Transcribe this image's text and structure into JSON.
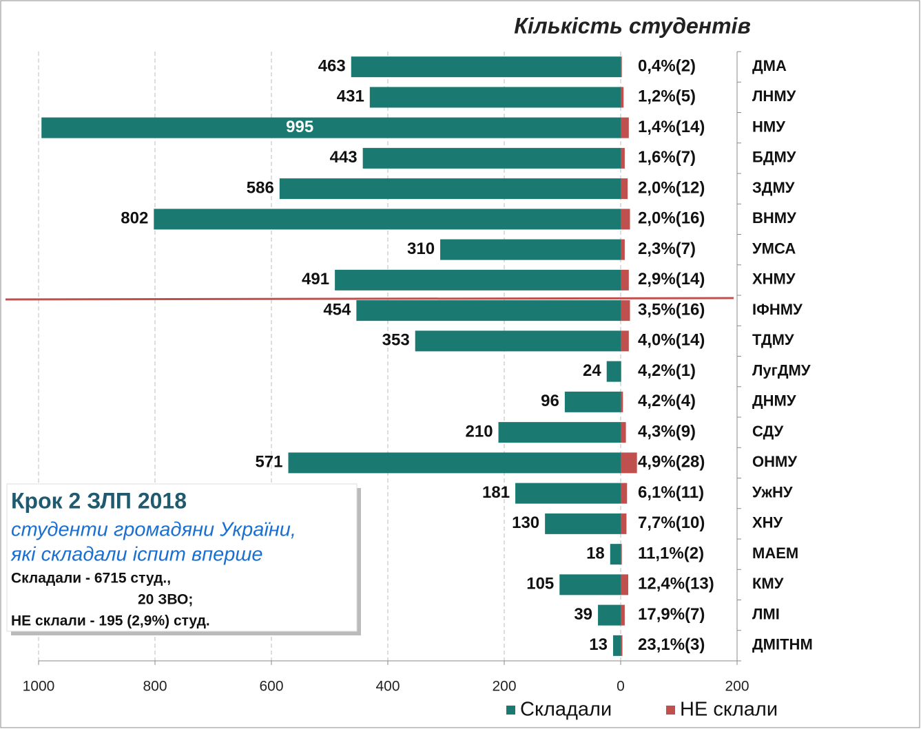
{
  "chart_data": {
    "type": "diverging_bar",
    "title": "Кількість студентів",
    "categories": [
      "ДМА",
      "ЛНМУ",
      "НМУ",
      "БДМУ",
      "ЗДМУ",
      "ВНМУ",
      "УМСА",
      "ХНМУ",
      "ІФНМУ",
      "ТДМУ",
      "ЛугДМУ",
      "ДНМУ",
      "СДУ",
      "ОНМУ",
      "УжНУ",
      "ХНУ",
      "МАЕМ",
      "КМУ",
      "ЛМІ",
      "ДМІТНМ"
    ],
    "series": [
      {
        "name": "Складали",
        "color": "#1a7a72",
        "values": [
          -463,
          -431,
          -995,
          -443,
          -586,
          -802,
          -310,
          -491,
          -454,
          -353,
          -24,
          -96,
          -210,
          -571,
          -181,
          -130,
          -18,
          -105,
          -39,
          -13
        ],
        "value_labels": [
          "463",
          "431",
          "995",
          "443",
          "586",
          "802",
          "310",
          "491",
          "454",
          "353",
          "24",
          "96",
          "210",
          "571",
          "181",
          "130",
          "18",
          "105",
          "39",
          "13"
        ]
      },
      {
        "name": "НЕ склали",
        "color": "#c0504d",
        "values": [
          2,
          5,
          14,
          7,
          12,
          16,
          7,
          14,
          16,
          14,
          1,
          4,
          9,
          28,
          11,
          10,
          2,
          13,
          7,
          3
        ],
        "value_labels": [
          "0,4%(2)",
          "1,2%(5)",
          "1,4%(14)",
          "1,6%(7)",
          "2,0%(12)",
          "2,0%(16)",
          "2,3%(7)",
          "2,9%(14)",
          "3,5%(16)",
          "4,0%(14)",
          "4,2%(1)",
          "4,2%(4)",
          "4,3%(9)",
          "4,9%(28)",
          "6,1%(11)",
          "7,7%(10)",
          "11,1%(2)",
          "12,4%(13)",
          "17,9%(7)",
          "23,1%(3)"
        ]
      }
    ],
    "xlim": [
      -1000,
      200
    ],
    "xticks": [
      {
        "value": -1000,
        "label": "1000"
      },
      {
        "value": -800,
        "label": "800"
      },
      {
        "value": -600,
        "label": "600"
      },
      {
        "value": -400,
        "label": "400"
      },
      {
        "value": -200,
        "label": "200"
      },
      0,
      200
    ],
    "grid": true,
    "legend": "bottom-right",
    "annotation": {
      "title": "Крок 2 ЗЛП 2018",
      "subtitle": [
        "студенти громадяни України,",
        "які складали іспит вперше"
      ],
      "notes": [
        "Складали - 6715 студ.,",
        "20 ЗВО;",
        "НЕ склали - 195 (2,9%) студ."
      ]
    }
  }
}
